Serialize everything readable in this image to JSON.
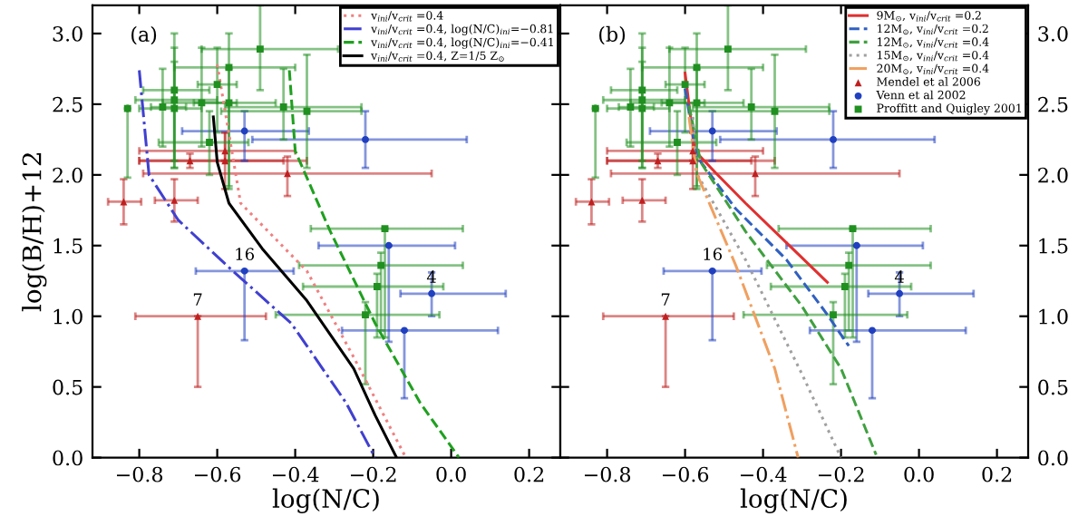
{
  "chart_data": [
    {
      "type": "scatter",
      "xlabel": "log(N/C)",
      "ylabel": "log(B/H)+12",
      "xlim": [
        -0.92,
        0.28
      ],
      "ylim": [
        0,
        3.2
      ],
      "xticks": [
        {
          "value": -0.8,
          "label": "−0.8"
        },
        {
          "value": -0.6,
          "label": "−0.6"
        },
        {
          "value": -0.4,
          "label": "−0.4"
        },
        {
          "value": -0.2,
          "label": "−0.2"
        },
        {
          "value": 0.0,
          "label": "0.0"
        },
        {
          "value": 0.2,
          "label": "0.2"
        }
      ],
      "yticks": [
        {
          "value": 0,
          "label": "0.0"
        },
        {
          "value": 0.5,
          "label": "0.5"
        },
        {
          "value": 1,
          "label": "1.0"
        },
        {
          "value": 1.5,
          "label": "1.5"
        },
        {
          "value": 2,
          "label": "2.0"
        },
        {
          "value": 2.5,
          "label": "2.5"
        },
        {
          "value": 3,
          "label": "3.0"
        }
      ],
      "grid": false,
      "legend": "top right",
      "annotations": [
        "(a)",
        {
          "text": "16",
          "x": -0.53,
          "y": 1.32
        },
        {
          "text": "7",
          "x": -0.65,
          "y": 1.0
        },
        {
          "text": "4",
          "x": -0.05,
          "y": 1.16
        }
      ],
      "series": [
        {
          "type": "line",
          "name": "v$_{ini}$/v$_{crit}$ =0.4",
          "color": "#f08080",
          "line_style": "dotted",
          "x": [
            -0.6,
            -0.54,
            -0.37,
            -0.25,
            -0.12
          ],
          "values": [
            2.78,
            1.8,
            1.32,
            0.71,
            0.02
          ]
        },
        {
          "type": "line",
          "name": "v$_{ini}$/v$_{crit}$ =0.4, log(N/C)$_{ini}$=−0.81",
          "color": "#4040d0",
          "line_style": "dashdot",
          "x": [
            -0.8,
            -0.775,
            -0.7,
            -0.56,
            -0.41,
            -0.27,
            -0.195
          ],
          "values": [
            2.74,
            2.0,
            1.68,
            1.32,
            0.95,
            0.39,
            0
          ]
        },
        {
          "type": "line",
          "name": "v$_{ini}$/v$_{crit}$ =0.4, log(N/C)$_{ini}$=−0.41",
          "color": "#20a020",
          "line_style": "dashed",
          "x": [
            -0.415,
            -0.4,
            -0.31,
            -0.195,
            -0.08,
            0.02
          ],
          "values": [
            2.74,
            2.17,
            1.6,
            0.95,
            0.39,
            0
          ]
        },
        {
          "type": "line",
          "name": "v$_{ini}$/v$_{crit}$ =0.4, Z=1/5 Z$_{⊙}$",
          "color": "#000000",
          "line_style": "solid",
          "x": [
            -0.61,
            -0.6,
            -0.57,
            -0.485,
            -0.37,
            -0.25,
            -0.195,
            -0.14
          ],
          "values": [
            2.41,
            2.09,
            1.8,
            1.48,
            1.11,
            0.63,
            0.3,
            0
          ]
        },
        {
          "marker": "triangle",
          "color": "#c02020",
          "x": [
            -0.84,
            -0.71,
            -0.67,
            -0.58,
            -0.58,
            -0.42,
            -0.65
          ],
          "values": [
            1.81,
            1.82,
            2.1,
            2.17,
            2.1,
            2.01,
            1.0
          ],
          "xerrors": [
            [
              -0.88,
              -0.795
            ],
            [
              -0.76,
              -0.65
            ],
            [
              -0.8,
              -0.43
            ],
            [
              -0.8,
              -0.4
            ],
            [
              -0.8,
              -0.37
            ],
            [
              -0.79,
              -0.05
            ],
            [
              -0.81,
              -0.475
            ]
          ],
          "errors": [
            [
              1.65,
              1.97
            ],
            [
              1.67,
              1.97
            ],
            [
              2.05,
              2.15
            ],
            [
              2.1,
              2.3
            ],
            [
              1.9,
              2.3
            ],
            [
              1.85,
              2.13
            ],
            [
              0.5,
              1.0
            ]
          ]
        },
        {
          "marker": "circle",
          "color": "#2040c0",
          "x": [
            -0.53,
            -0.22,
            -0.16,
            -0.05,
            -0.12,
            -0.53
          ],
          "values": [
            2.31,
            2.25,
            1.5,
            1.16,
            0.9,
            1.32
          ],
          "xerrors": [
            [
              -0.69,
              -0.365
            ],
            [
              -0.51,
              0.04
            ],
            [
              -0.34,
              0.01
            ],
            [
              -0.13,
              0.14
            ],
            [
              -0.28,
              0.12
            ],
            [
              -0.655,
              -0.404
            ]
          ],
          "errors": [
            [
              2.1,
              2.45
            ],
            [
              2.05,
              2.45
            ],
            [
              0.82,
              1.5
            ],
            [
              1.0,
              1.31
            ],
            [
              0.42,
              0.9
            ],
            [
              0.83,
              1.32
            ]
          ]
        },
        {
          "marker": "square",
          "color": "#209020",
          "x": [
            -0.83,
            -0.74,
            -0.71,
            -0.71,
            -0.71,
            -0.64,
            -0.62,
            -0.6,
            -0.57,
            -0.57,
            -0.49,
            -0.43,
            -0.37,
            -0.17,
            -0.18,
            -0.19,
            -0.22
          ],
          "values": [
            2.47,
            2.48,
            2.6,
            2.53,
            2.47,
            2.51,
            2.23,
            2.64,
            2.76,
            2.51,
            2.89,
            2.48,
            2.45,
            1.62,
            1.36,
            1.21,
            1.01
          ],
          "xerrors": [
            null,
            [
              -0.77,
              -0.68
            ],
            [
              -0.79,
              -0.62
            ],
            [
              -0.81,
              -0.6
            ],
            [
              -0.8,
              -0.64
            ],
            [
              -0.74,
              -0.55
            ],
            [
              -0.75,
              -0.52
            ],
            [
              -0.65,
              -0.55
            ],
            [
              -0.71,
              -0.4
            ],
            [
              -0.66,
              -0.45
            ],
            [
              -0.64,
              -0.29
            ],
            [
              -0.58,
              -0.23
            ],
            [
              -0.59,
              -0.23
            ],
            [
              -0.36,
              0.03
            ],
            [
              -0.39,
              0.03
            ],
            [
              -0.38,
              -0.02
            ],
            [
              -0.45,
              -0.03
            ]
          ],
          "errors": [
            [
              1.98,
              2.47
            ],
            [
              2.2,
              2.75
            ],
            [
              2.05,
              3.0
            ],
            [
              2.1,
              2.9
            ],
            [
              2.05,
              2.8
            ],
            [
              2.2,
              2.9
            ],
            [
              2.0,
              2.45
            ],
            [
              2.3,
              2.9
            ],
            [
              1.9,
              3.0
            ],
            [
              1.92,
              2.75
            ],
            [
              2.6,
              3.2
            ],
            [
              2.25,
              2.75
            ],
            [
              2.05,
              2.85
            ],
            [
              0.85,
              1.62
            ],
            [
              0.9,
              1.45
            ],
            [
              0.85,
              1.3
            ],
            [
              0.52,
              1.1
            ]
          ]
        }
      ]
    },
    {
      "type": "scatter",
      "xlabel": "log(N/C)",
      "xlim": [
        -0.92,
        0.28
      ],
      "ylim": [
        0,
        3.2
      ],
      "xticks": [
        {
          "value": -0.8,
          "label": "−0.8"
        },
        {
          "value": -0.6,
          "label": "−0.6"
        },
        {
          "value": -0.4,
          "label": "−0.4"
        },
        {
          "value": -0.2,
          "label": "−0.2"
        },
        {
          "value": 0.0,
          "label": "0.0"
        },
        {
          "value": 0.2,
          "label": "0.2"
        }
      ],
      "yticks": [
        {
          "value": 0,
          "label": "0.0"
        },
        {
          "value": 0.5,
          "label": "0.5"
        },
        {
          "value": 1,
          "label": "1.0"
        },
        {
          "value": 1.5,
          "label": "1.5"
        },
        {
          "value": 2,
          "label": "2.0"
        },
        {
          "value": 2.5,
          "label": "2.5"
        },
        {
          "value": 3,
          "label": "3.0"
        }
      ],
      "grid": false,
      "legend": "top right",
      "annotations": [
        "(b)",
        {
          "text": "16",
          "x": -0.53,
          "y": 1.32
        },
        {
          "text": "7",
          "x": -0.65,
          "y": 1.0
        },
        {
          "text": "4",
          "x": -0.05,
          "y": 1.16
        }
      ],
      "series": [
        {
          "type": "line",
          "name": "9M$_{⊙}$, v$_{ini}$/v$_{crit}$ =0.2",
          "color": "#e03030",
          "line_style": "solid",
          "x": [
            -0.6,
            -0.575,
            -0.52,
            -0.445,
            -0.34,
            -0.235
          ],
          "values": [
            2.72,
            2.17,
            2.01,
            1.8,
            1.52,
            1.24
          ]
        },
        {
          "type": "line",
          "name": "12M$_{⊙}$, v$_{ini}$/v$_{crit}$ =0.2",
          "color": "#3060c0",
          "line_style": "dashed",
          "x": [
            -0.6,
            -0.57,
            -0.47,
            -0.34,
            -0.24,
            -0.18
          ],
          "values": [
            2.61,
            2.13,
            1.76,
            1.4,
            1.03,
            0.79
          ]
        },
        {
          "type": "line",
          "name": "12M$_{⊙}$, v$_{ini}$/v$_{crit}$ =0.4",
          "color": "#40a040",
          "line_style": "dashed",
          "x": [
            -0.59,
            -0.56,
            -0.445,
            -0.3,
            -0.2,
            -0.11
          ],
          "values": [
            2.49,
            2.09,
            1.6,
            1.07,
            0.63,
            0.02
          ]
        },
        {
          "type": "line",
          "name": "15M$_{⊙}$, v$_{ini}$/v$_{crit}$ =0.4",
          "color": "#a0a0a0",
          "line_style": "dotted",
          "x": [
            -0.58,
            -0.57,
            -0.445,
            -0.3,
            -0.2
          ],
          "values": [
            2.41,
            2.01,
            1.4,
            0.59,
            0
          ]
        },
        {
          "type": "line",
          "name": "20M$_{⊙}$, v$_{ini}$/v$_{crit}$ =0.4",
          "color": "#f0a060",
          "line_style": "dashdot",
          "x": [
            -0.59,
            -0.57,
            -0.47,
            -0.37,
            -0.31
          ],
          "values": [
            2.41,
            2.01,
            1.36,
            0.63,
            0
          ]
        },
        {
          "name": "Mendel et al 2006",
          "marker": "triangle",
          "color": "#c02020",
          "x": [
            -0.84,
            -0.71,
            -0.67,
            -0.58,
            -0.58,
            -0.42,
            -0.65
          ],
          "values": [
            1.81,
            1.82,
            2.1,
            2.17,
            2.1,
            2.01,
            1.0
          ],
          "xerrors": [
            [
              -0.88,
              -0.795
            ],
            [
              -0.76,
              -0.65
            ],
            [
              -0.8,
              -0.43
            ],
            [
              -0.8,
              -0.4
            ],
            [
              -0.8,
              -0.37
            ],
            [
              -0.79,
              -0.05
            ],
            [
              -0.81,
              -0.475
            ]
          ],
          "errors": [
            [
              1.65,
              1.97
            ],
            [
              1.67,
              1.97
            ],
            [
              2.05,
              2.15
            ],
            [
              2.1,
              2.3
            ],
            [
              1.9,
              2.3
            ],
            [
              1.85,
              2.13
            ],
            [
              0.5,
              1.0
            ]
          ]
        },
        {
          "name": "Venn et al 2002",
          "marker": "circle",
          "color": "#2040c0",
          "x": [
            -0.53,
            -0.22,
            -0.16,
            -0.05,
            -0.12,
            -0.53
          ],
          "values": [
            2.31,
            2.25,
            1.5,
            1.16,
            0.9,
            1.32
          ],
          "xerrors": [
            [
              -0.69,
              -0.365
            ],
            [
              -0.51,
              0.04
            ],
            [
              -0.34,
              0.01
            ],
            [
              -0.13,
              0.14
            ],
            [
              -0.28,
              0.12
            ],
            [
              -0.655,
              -0.404
            ]
          ],
          "errors": [
            [
              2.1,
              2.45
            ],
            [
              2.05,
              2.45
            ],
            [
              0.82,
              1.5
            ],
            [
              1.0,
              1.31
            ],
            [
              0.42,
              0.9
            ],
            [
              0.83,
              1.32
            ]
          ]
        },
        {
          "name": "Proffitt and Quigley 2001",
          "marker": "square",
          "color": "#209020",
          "x": [
            -0.83,
            -0.74,
            -0.71,
            -0.71,
            -0.71,
            -0.64,
            -0.62,
            -0.6,
            -0.57,
            -0.57,
            -0.49,
            -0.43,
            -0.37,
            -0.17,
            -0.18,
            -0.19,
            -0.22
          ],
          "values": [
            2.47,
            2.48,
            2.6,
            2.53,
            2.47,
            2.51,
            2.23,
            2.64,
            2.76,
            2.51,
            2.89,
            2.48,
            2.45,
            1.62,
            1.36,
            1.21,
            1.01
          ],
          "xerrors": [
            null,
            [
              -0.77,
              -0.68
            ],
            [
              -0.79,
              -0.62
            ],
            [
              -0.81,
              -0.6
            ],
            [
              -0.8,
              -0.64
            ],
            [
              -0.74,
              -0.55
            ],
            [
              -0.75,
              -0.52
            ],
            [
              -0.65,
              -0.55
            ],
            [
              -0.71,
              -0.4
            ],
            [
              -0.66,
              -0.45
            ],
            [
              -0.64,
              -0.29
            ],
            [
              -0.58,
              -0.23
            ],
            [
              -0.59,
              -0.23
            ],
            [
              -0.36,
              0.03
            ],
            [
              -0.39,
              0.03
            ],
            [
              -0.38,
              -0.02
            ],
            [
              -0.45,
              -0.03
            ]
          ],
          "errors": [
            [
              1.98,
              2.47
            ],
            [
              2.2,
              2.75
            ],
            [
              2.05,
              3.0
            ],
            [
              2.1,
              2.9
            ],
            [
              2.05,
              2.8
            ],
            [
              2.2,
              2.9
            ],
            [
              2.0,
              2.45
            ],
            [
              2.3,
              2.9
            ],
            [
              1.9,
              3.0
            ],
            [
              1.92,
              2.75
            ],
            [
              2.6,
              3.2
            ],
            [
              2.25,
              2.75
            ],
            [
              2.05,
              2.85
            ],
            [
              0.85,
              1.62
            ],
            [
              0.9,
              1.45
            ],
            [
              0.85,
              1.3
            ],
            [
              0.52,
              1.1
            ]
          ]
        }
      ]
    }
  ]
}
